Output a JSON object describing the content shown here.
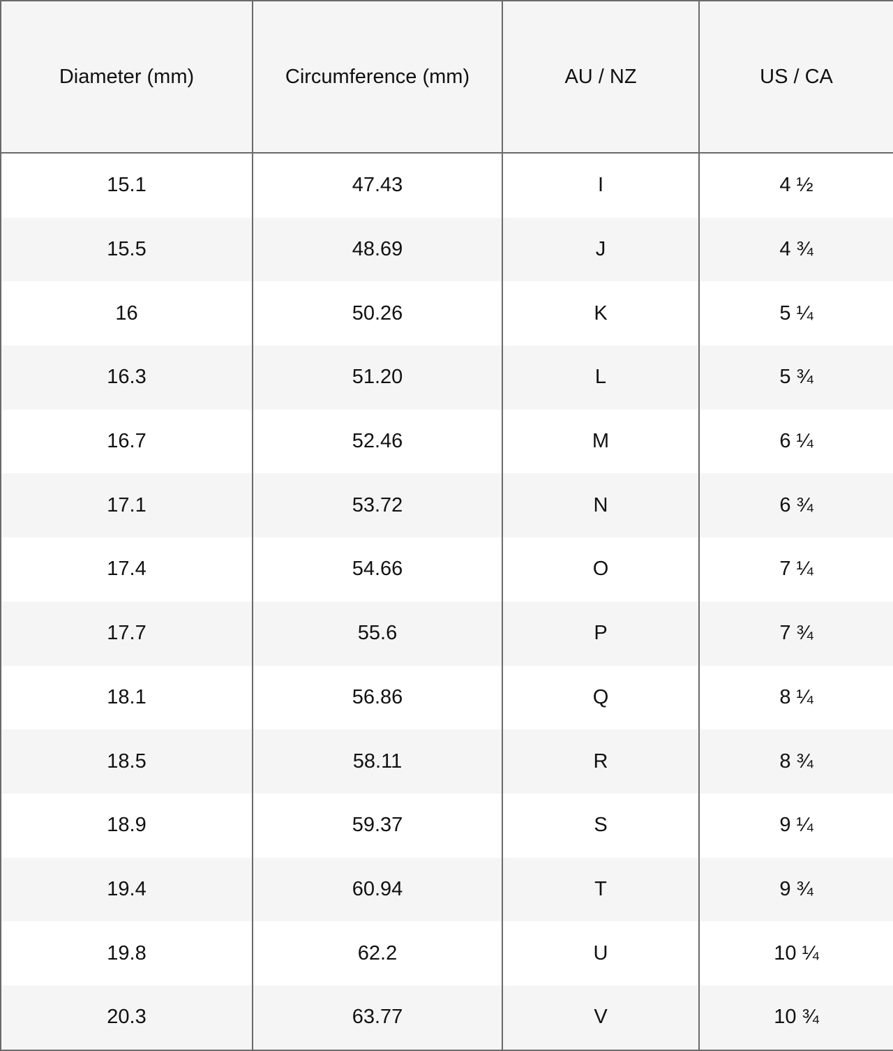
{
  "table": {
    "headers": [
      "Diameter (mm)",
      "Circumference (mm)",
      "AU / NZ",
      "US / CA"
    ],
    "rows": [
      [
        "15.1",
        "47.43",
        "I",
        "4 ½"
      ],
      [
        "15.5",
        "48.69",
        "J",
        "4 ¾"
      ],
      [
        "16",
        "50.26",
        "K",
        "5 ¼"
      ],
      [
        "16.3",
        "51.20",
        "L",
        "5 ¾"
      ],
      [
        "16.7",
        "52.46",
        "M",
        "6 ¼"
      ],
      [
        "17.1",
        "53.72",
        "N",
        "6 ¾"
      ],
      [
        "17.4",
        "54.66",
        "O",
        "7 ¼"
      ],
      [
        "17.7",
        "55.6",
        "P",
        "7 ¾"
      ],
      [
        "18.1",
        "56.86",
        "Q",
        "8 ¼"
      ],
      [
        "18.5",
        "58.11",
        "R",
        "8 ¾"
      ],
      [
        "18.9",
        "59.37",
        "S",
        "9 ¼"
      ],
      [
        "19.4",
        "60.94",
        "T",
        "9 ¾"
      ],
      [
        "19.8",
        "62.2",
        "U",
        "10 ¼"
      ],
      [
        "20.3",
        "63.77",
        "V",
        "10 ¾"
      ]
    ]
  },
  "colors": {
    "header_bg": "#f5f5f5",
    "stripe_bg": "#f5f5f5",
    "border": "#6a6a6a",
    "text": "#111111"
  }
}
